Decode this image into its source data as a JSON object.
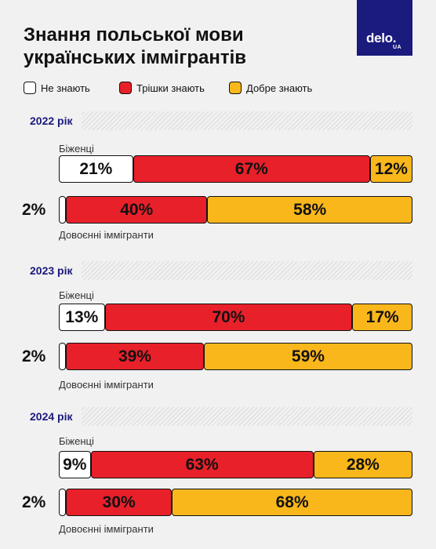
{
  "title_lines": [
    "Знання польської мови",
    "українських іммігрантів"
  ],
  "logo": {
    "main": "delo.",
    "sub": "UA"
  },
  "colors": {
    "none": "#ffffff",
    "little": "#e8202a",
    "good": "#fab71b",
    "accent": "#1b1a7d"
  },
  "chart_data": {
    "type": "bar",
    "stacked": true,
    "orientation": "horizontal",
    "title": "Знання польської мови українських іммігрантів",
    "legend": {
      "position": "top-left",
      "entries": [
        "Не знають",
        "Трішки знають",
        "Добре знають"
      ]
    },
    "groups": [
      {
        "label": "2022 рік",
        "bars": [
          {
            "name": "Біженці",
            "values": [
              21,
              67,
              12
            ],
            "labels": [
              "21%",
              "67%",
              "12%"
            ]
          },
          {
            "name": "Довоєнні іммігранти",
            "values": [
              2,
              40,
              58
            ],
            "labels": [
              "2%",
              "40%",
              "58%"
            ]
          }
        ]
      },
      {
        "label": "2023 рік",
        "bars": [
          {
            "name": "Біженці",
            "values": [
              13,
              70,
              17
            ],
            "labels": [
              "13%",
              "70%",
              "17%"
            ]
          },
          {
            "name": "Довоєнні іммігранти",
            "values": [
              2,
              39,
              59
            ],
            "labels": [
              "2%",
              "39%",
              "59%"
            ]
          }
        ]
      },
      {
        "label": "2024 рік",
        "bars": [
          {
            "name": "Біженці",
            "values": [
              9,
              63,
              28
            ],
            "labels": [
              "9%",
              "63%",
              "28%"
            ]
          },
          {
            "name": "Довоєнні іммігранти",
            "values": [
              2,
              30,
              68
            ],
            "labels": [
              "2%",
              "30%",
              "68%"
            ]
          }
        ]
      }
    ]
  }
}
